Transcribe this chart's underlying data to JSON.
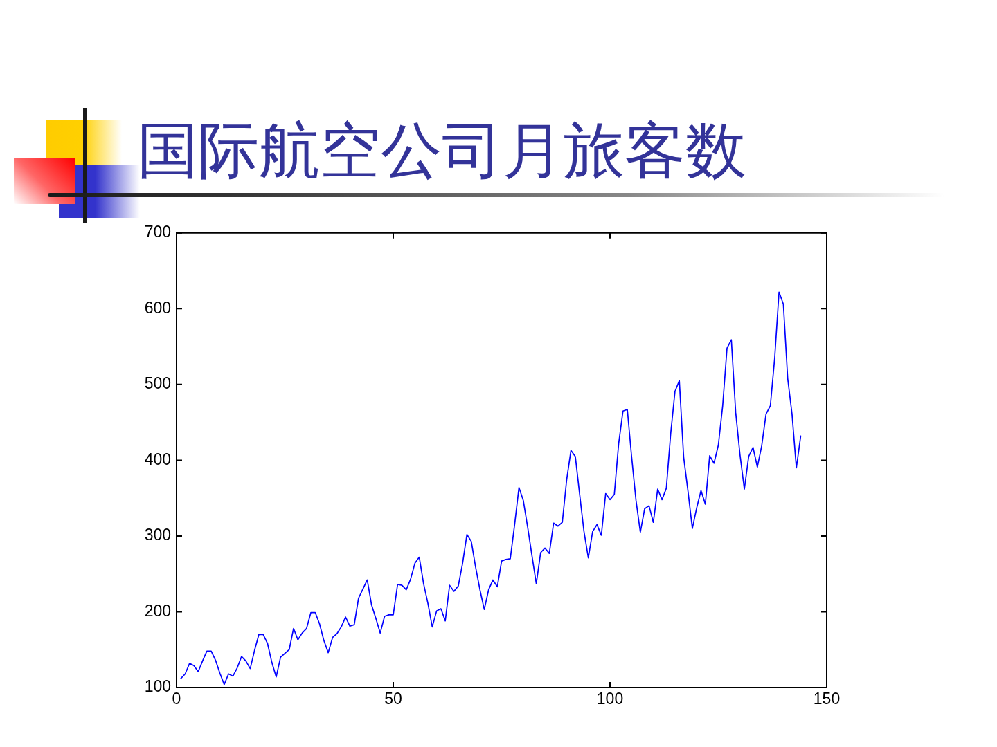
{
  "chart_data": {
    "type": "line",
    "title": "国际航空公司月旅客数",
    "x": [
      1,
      2,
      3,
      4,
      5,
      6,
      7,
      8,
      9,
      10,
      11,
      12,
      13,
      14,
      15,
      16,
      17,
      18,
      19,
      20,
      21,
      22,
      23,
      24,
      25,
      26,
      27,
      28,
      29,
      30,
      31,
      32,
      33,
      34,
      35,
      36,
      37,
      38,
      39,
      40,
      41,
      42,
      43,
      44,
      45,
      46,
      47,
      48,
      49,
      50,
      51,
      52,
      53,
      54,
      55,
      56,
      57,
      58,
      59,
      60,
      61,
      62,
      63,
      64,
      65,
      66,
      67,
      68,
      69,
      70,
      71,
      72,
      73,
      74,
      75,
      76,
      77,
      78,
      79,
      80,
      81,
      82,
      83,
      84,
      85,
      86,
      87,
      88,
      89,
      90,
      91,
      92,
      93,
      94,
      95,
      96,
      97,
      98,
      99,
      100,
      101,
      102,
      103,
      104,
      105,
      106,
      107,
      108,
      109,
      110,
      111,
      112,
      113,
      114,
      115,
      116,
      117,
      118,
      119,
      120,
      121,
      122,
      123,
      124,
      125,
      126,
      127,
      128,
      129,
      130,
      131,
      132,
      133,
      134,
      135,
      136,
      137,
      138,
      139,
      140,
      141,
      142,
      143,
      144
    ],
    "values": [
      112,
      118,
      132,
      129,
      121,
      135,
      148,
      148,
      136,
      119,
      104,
      118,
      115,
      126,
      141,
      135,
      125,
      149,
      170,
      170,
      158,
      133,
      114,
      140,
      145,
      150,
      178,
      163,
      172,
      178,
      199,
      199,
      184,
      162,
      146,
      166,
      171,
      180,
      193,
      181,
      183,
      218,
      230,
      242,
      209,
      191,
      172,
      194,
      196,
      196,
      236,
      235,
      229,
      243,
      264,
      272,
      237,
      211,
      180,
      201,
      204,
      188,
      235,
      227,
      234,
      264,
      302,
      293,
      259,
      229,
      203,
      229,
      242,
      233,
      267,
      269,
      270,
      315,
      364,
      347,
      312,
      274,
      237,
      278,
      284,
      277,
      317,
      313,
      318,
      374,
      413,
      405,
      355,
      306,
      271,
      306,
      315,
      301,
      356,
      348,
      355,
      422,
      465,
      467,
      404,
      347,
      305,
      336,
      340,
      318,
      362,
      348,
      363,
      435,
      491,
      505,
      404,
      359,
      310,
      337,
      360,
      342,
      406,
      396,
      420,
      472,
      548,
      559,
      463,
      407,
      362,
      405,
      417,
      391,
      419,
      461,
      472,
      535,
      622,
      606,
      508,
      461,
      390,
      432
    ],
    "color": "#0000ff",
    "xlim": [
      0,
      150
    ],
    "xticks": [
      0,
      50,
      100,
      150
    ],
    "ylim": [
      100,
      700
    ],
    "yticks": [
      100,
      200,
      300,
      400,
      500,
      600,
      700
    ],
    "grid": false,
    "legend": false,
    "marker": "none",
    "line_style": "solid"
  }
}
